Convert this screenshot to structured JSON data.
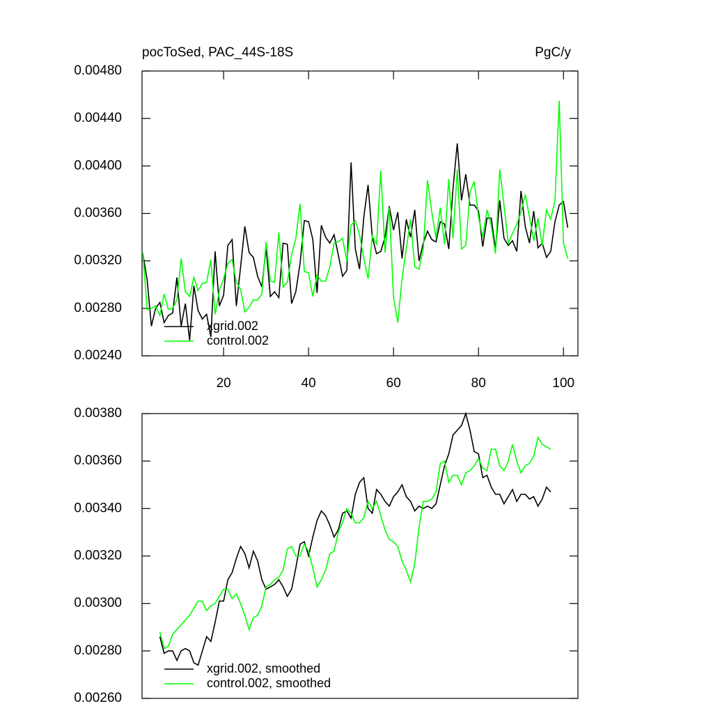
{
  "chart_data": [
    {
      "type": "line",
      "title": "pocToSed, PAC_44S-18S",
      "units_label": "PgC/y",
      "x": [
        1,
        2,
        3,
        4,
        5,
        6,
        7,
        8,
        9,
        10,
        11,
        12,
        13,
        14,
        15,
        16,
        17,
        18,
        19,
        20,
        21,
        22,
        23,
        24,
        25,
        26,
        27,
        28,
        29,
        30,
        31,
        32,
        33,
        34,
        35,
        36,
        37,
        38,
        39,
        40,
        41,
        42,
        43,
        44,
        45,
        46,
        47,
        48,
        49,
        50,
        51,
        52,
        53,
        54,
        55,
        56,
        57,
        58,
        59,
        60,
        61,
        62,
        63,
        64,
        65,
        66,
        67,
        68,
        69,
        70,
        71,
        72,
        73,
        74,
        75,
        76,
        77,
        78,
        79,
        80,
        81,
        82,
        83,
        84,
        85,
        86,
        87,
        88,
        89,
        90,
        91,
        92,
        93,
        94,
        95,
        96,
        97,
        98,
        99,
        100,
        101
      ],
      "series": [
        {
          "name": "xgrid.002",
          "color": "#000000",
          "values": [
            0.00326,
            0.00304,
            0.00265,
            0.0028,
            0.00285,
            0.00268,
            0.00274,
            0.00276,
            0.00306,
            0.00265,
            0.00284,
            0.00253,
            0.00299,
            0.00278,
            0.00271,
            0.00275,
            0.00256,
            0.00328,
            0.00282,
            0.00291,
            0.00333,
            0.00338,
            0.00282,
            0.00315,
            0.00349,
            0.00327,
            0.00323,
            0.00307,
            0.00298,
            0.00331,
            0.0029,
            0.00294,
            0.00289,
            0.00335,
            0.00334,
            0.00284,
            0.00294,
            0.00318,
            0.00354,
            0.00353,
            0.00338,
            0.00293,
            0.0035,
            0.0034,
            0.00335,
            0.00342,
            0.00325,
            0.00307,
            0.00312,
            0.00403,
            0.0033,
            0.00313,
            0.00357,
            0.00384,
            0.0034,
            0.00326,
            0.00328,
            0.0034,
            0.00366,
            0.00346,
            0.00361,
            0.00322,
            0.00355,
            0.0034,
            0.00363,
            0.0032,
            0.00335,
            0.00345,
            0.00338,
            0.00336,
            0.00353,
            0.00351,
            0.0033,
            0.00381,
            0.00419,
            0.00371,
            0.00393,
            0.00367,
            0.00367,
            0.00362,
            0.00332,
            0.00356,
            0.00356,
            0.0033,
            0.00371,
            0.00339,
            0.00333,
            0.00337,
            0.00328,
            0.00379,
            0.00349,
            0.00335,
            0.00362,
            0.00331,
            0.00335,
            0.00323,
            0.00328,
            0.00353,
            0.00367,
            0.0037,
            0.00348
          ]
        },
        {
          "name": "control.002",
          "color": "#00ff00",
          "values": [
            0.00327,
            0.00279,
            0.0028,
            0.00282,
            0.00274,
            0.00292,
            0.00279,
            0.0028,
            0.00287,
            0.00322,
            0.00294,
            0.0029,
            0.00306,
            0.00295,
            0.00301,
            0.00302,
            0.00321,
            0.00275,
            0.00295,
            0.00305,
            0.00318,
            0.00321,
            0.00302,
            0.00296,
            0.00277,
            0.00281,
            0.00287,
            0.00287,
            0.00292,
            0.00336,
            0.00303,
            0.00302,
            0.00344,
            0.00298,
            0.00302,
            0.00325,
            0.00339,
            0.00368,
            0.00311,
            0.0031,
            0.0029,
            0.00308,
            0.00303,
            0.00303,
            0.00315,
            0.00335,
            0.00336,
            0.00339,
            0.0032,
            0.0035,
            0.00354,
            0.00342,
            0.00322,
            0.00305,
            0.00341,
            0.00334,
            0.00396,
            0.00327,
            0.00365,
            0.00289,
            0.00268,
            0.00305,
            0.0033,
            0.00355,
            0.00315,
            0.00313,
            0.0033,
            0.00388,
            0.00361,
            0.00339,
            0.00365,
            0.00334,
            0.00389,
            0.00339,
            0.00397,
            0.0033,
            0.00333,
            0.00378,
            0.00387,
            0.00357,
            0.0034,
            0.00363,
            0.0035,
            0.00326,
            0.00397,
            0.00367,
            0.00335,
            0.00343,
            0.00351,
            0.00361,
            0.00376,
            0.00357,
            0.00337,
            0.00356,
            0.00333,
            0.00363,
            0.00355,
            0.00371,
            0.00455,
            0.00335,
            0.00322
          ]
        }
      ],
      "xlim": [
        0.8,
        103.4
      ],
      "xticks": [
        20,
        40,
        60,
        80,
        100
      ],
      "ylim": [
        0.0024,
        0.0048
      ],
      "yticks": [
        {
          "value": 0.0024,
          "label": "0.00240"
        },
        {
          "value": 0.0028,
          "label": "0.00280"
        },
        {
          "value": 0.0032,
          "label": "0.00320"
        },
        {
          "value": 0.0036,
          "label": "0.00360"
        },
        {
          "value": 0.004,
          "label": "0.00400"
        },
        {
          "value": 0.0044,
          "label": "0.00440"
        },
        {
          "value": 0.0048,
          "label": "0.00480"
        }
      ],
      "legend": "lower left"
    },
    {
      "type": "line",
      "x": [
        5,
        6,
        7,
        8,
        9,
        10,
        11,
        12,
        13,
        14,
        15,
        16,
        17,
        18,
        19,
        20,
        21,
        22,
        23,
        24,
        25,
        26,
        27,
        28,
        29,
        30,
        31,
        32,
        33,
        34,
        35,
        36,
        37,
        38,
        39,
        40,
        41,
        42,
        43,
        44,
        45,
        46,
        47,
        48,
        49,
        50,
        51,
        52,
        53,
        54,
        55,
        56,
        57,
        58,
        59,
        60,
        61,
        62,
        63,
        64,
        65,
        66,
        67,
        68,
        69,
        70,
        71,
        72,
        73,
        74,
        75,
        76,
        77,
        78,
        79,
        80,
        81,
        82,
        83,
        84,
        85,
        86,
        87,
        88,
        89,
        90,
        91,
        92,
        93,
        94,
        95,
        96,
        97
      ],
      "series": [
        {
          "name": "xgrid.002, smoothed",
          "color": "#000000",
          "values": [
            0.00286,
            0.00279,
            0.0028,
            0.0028,
            0.00276,
            0.0028,
            0.00281,
            0.0028,
            0.00275,
            0.00274,
            0.0028,
            0.00286,
            0.00284,
            0.00292,
            0.00301,
            0.00301,
            0.0031,
            0.00313,
            0.00319,
            0.00324,
            0.00321,
            0.00315,
            0.00322,
            0.00318,
            0.0031,
            0.00306,
            0.00307,
            0.00308,
            0.0031,
            0.00307,
            0.00303,
            0.00306,
            0.00315,
            0.00325,
            0.00326,
            0.0032,
            0.00328,
            0.00335,
            0.00339,
            0.00337,
            0.00333,
            0.00328,
            0.00331,
            0.00338,
            0.00339,
            0.00336,
            0.00346,
            0.00351,
            0.00353,
            0.0034,
            0.00338,
            0.00348,
            0.00346,
            0.00343,
            0.00341,
            0.00345,
            0.00347,
            0.0035,
            0.00345,
            0.00343,
            0.00339,
            0.00341,
            0.0034,
            0.00341,
            0.0034,
            0.00342,
            0.0035,
            0.00358,
            0.00363,
            0.00371,
            0.00373,
            0.00375,
            0.0038,
            0.00373,
            0.00364,
            0.00363,
            0.00353,
            0.00354,
            0.00349,
            0.00346,
            0.00346,
            0.00342,
            0.00345,
            0.00348,
            0.00343,
            0.00346,
            0.00346,
            0.00344,
            0.00345,
            0.00341,
            0.00344,
            0.00349,
            0.00347
          ]
        },
        {
          "name": "control.002, smoothed",
          "color": "#00ff00",
          "values": [
            0.00288,
            0.00281,
            0.00282,
            0.00287,
            0.00289,
            0.00291,
            0.00293,
            0.00295,
            0.00298,
            0.00301,
            0.00301,
            0.00297,
            0.00299,
            0.003,
            0.00303,
            0.00306,
            0.00306,
            0.00302,
            0.00304,
            0.003,
            0.00295,
            0.00289,
            0.00294,
            0.00295,
            0.00299,
            0.00307,
            0.00308,
            0.0031,
            0.00311,
            0.00314,
            0.00323,
            0.00324,
            0.0032,
            0.0032,
            0.00325,
            0.00322,
            0.00315,
            0.00307,
            0.0031,
            0.00314,
            0.00321,
            0.00322,
            0.0033,
            0.00334,
            0.0034,
            0.00338,
            0.00334,
            0.00334,
            0.00336,
            0.00343,
            0.0034,
            0.00343,
            0.00337,
            0.00331,
            0.00327,
            0.00326,
            0.00324,
            0.00318,
            0.00314,
            0.00309,
            0.00317,
            0.00332,
            0.00343,
            0.00343,
            0.00344,
            0.00347,
            0.00359,
            0.0036,
            0.00351,
            0.00354,
            0.00354,
            0.0035,
            0.00355,
            0.00356,
            0.00358,
            0.00361,
            0.00357,
            0.00356,
            0.00365,
            0.00365,
            0.00358,
            0.00356,
            0.0036,
            0.00367,
            0.0036,
            0.00355,
            0.00358,
            0.00359,
            0.00362,
            0.0037,
            0.00367,
            0.00366,
            0.00365
          ]
        }
      ],
      "xlim": [
        0.8,
        103.4
      ],
      "ylim": [
        0.0026,
        0.0038
      ],
      "yticks": [
        {
          "value": 0.0026,
          "label": "0.00260"
        },
        {
          "value": 0.0028,
          "label": "0.00280"
        },
        {
          "value": 0.003,
          "label": "0.00300"
        },
        {
          "value": 0.0032,
          "label": "0.00320"
        },
        {
          "value": 0.0034,
          "label": "0.00340"
        },
        {
          "value": 0.0036,
          "label": "0.00360"
        },
        {
          "value": 0.0038,
          "label": "0.00380"
        }
      ],
      "legend": "lower left"
    }
  ]
}
